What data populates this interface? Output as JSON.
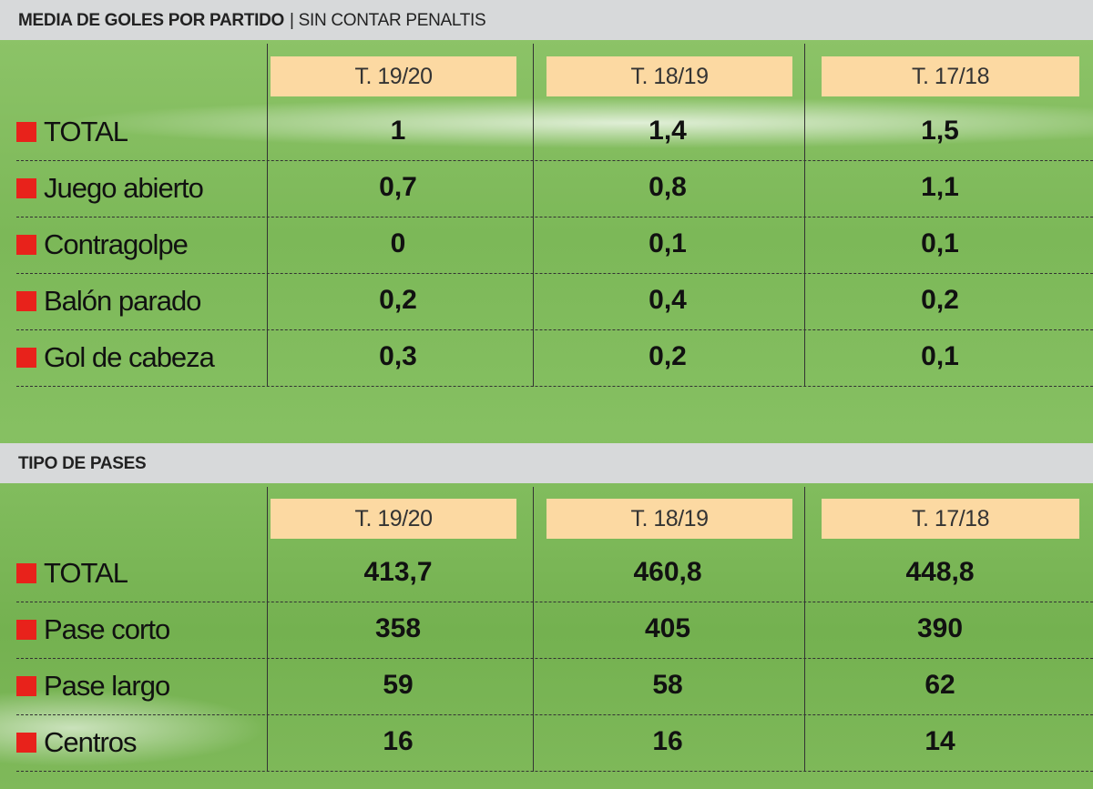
{
  "tables": [
    {
      "title": "MEDIA DE GOLES POR PARTIDO",
      "subtitle": "| SIN CONTAR PENALTIS",
      "columns": [
        "T. 19/20",
        "T. 18/19",
        "T. 17/18"
      ],
      "rows": [
        {
          "label": "TOTAL",
          "values": [
            "1",
            "1,4",
            "1,5"
          ]
        },
        {
          "label": "Juego abierto",
          "values": [
            "0,7",
            "0,8",
            "1,1"
          ]
        },
        {
          "label": "Contragolpe",
          "values": [
            "0",
            "0,1",
            "0,1"
          ]
        },
        {
          "label": "Balón parado",
          "values": [
            "0,2",
            "0,4",
            "0,2"
          ]
        },
        {
          "label": "Gol de cabeza",
          "values": [
            "0,3",
            "0,2",
            "0,1"
          ]
        }
      ]
    },
    {
      "title": "TIPO DE PASES",
      "subtitle": "",
      "columns": [
        "T. 19/20",
        "T. 18/19",
        "T. 17/18"
      ],
      "rows": [
        {
          "label": "TOTAL",
          "values": [
            "413,7",
            "460,8",
            "448,8"
          ]
        },
        {
          "label": "Pase corto",
          "values": [
            "358",
            "405",
            "390"
          ]
        },
        {
          "label": "Pase largo",
          "values": [
            "59",
            "58",
            "62"
          ]
        },
        {
          "label": "Centros",
          "values": [
            "16",
            "16",
            "14"
          ]
        }
      ]
    }
  ],
  "colors": {
    "header": "#fcd9a2",
    "bullet": "#e8221b",
    "band": "#d7d9da"
  },
  "chart_data": [
    {
      "type": "table",
      "title": "MEDIA DE GOLES POR PARTIDO | SIN CONTAR PENALTIS",
      "categories": [
        "T. 19/20",
        "T. 18/19",
        "T. 17/18"
      ],
      "series": [
        {
          "name": "TOTAL",
          "values": [
            1,
            1.4,
            1.5
          ]
        },
        {
          "name": "Juego abierto",
          "values": [
            0.7,
            0.8,
            1.1
          ]
        },
        {
          "name": "Contragolpe",
          "values": [
            0,
            0.1,
            0.1
          ]
        },
        {
          "name": "Balón parado",
          "values": [
            0.2,
            0.4,
            0.2
          ]
        },
        {
          "name": "Gol de cabeza",
          "values": [
            0.3,
            0.2,
            0.1
          ]
        }
      ]
    },
    {
      "type": "table",
      "title": "TIPO DE PASES",
      "categories": [
        "T. 19/20",
        "T. 18/19",
        "T. 17/18"
      ],
      "series": [
        {
          "name": "TOTAL",
          "values": [
            413.7,
            460.8,
            448.8
          ]
        },
        {
          "name": "Pase corto",
          "values": [
            358,
            405,
            390
          ]
        },
        {
          "name": "Pase largo",
          "values": [
            59,
            58,
            62
          ]
        },
        {
          "name": "Centros",
          "values": [
            16,
            16,
            14
          ]
        }
      ]
    }
  ]
}
